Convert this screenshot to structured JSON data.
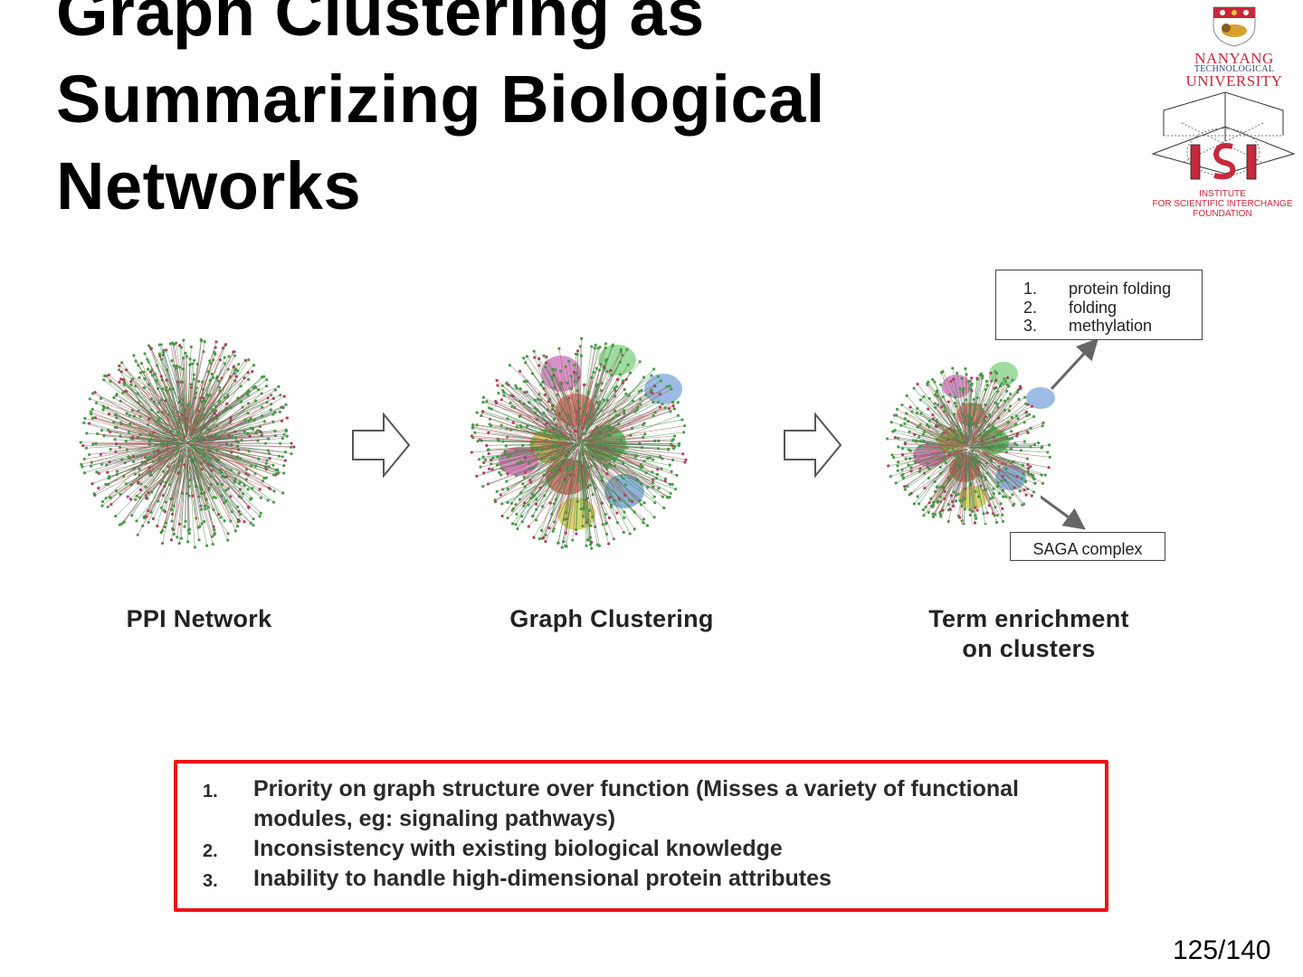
{
  "title": {
    "lines": [
      "Graph Clustering as",
      "Summarizing Biological",
      "Networks"
    ]
  },
  "logos": {
    "ntu": {
      "line1": "NANYANG",
      "line2": "TECHNOLOGICAL",
      "line3": "UNIVERSITY"
    },
    "isi": {
      "line1": "INSTITUTE",
      "line2": "FOR SCIENTIFIC INTERCHANGE",
      "line3": "FOUNDATION"
    }
  },
  "figure": {
    "stages": [
      {
        "label": "PPI Network"
      },
      {
        "label": "Graph Clustering"
      },
      {
        "label_line1": "Term enrichment",
        "label_line2": "on clusters"
      }
    ],
    "terms_box": [
      {
        "num": "1.",
        "text": "protein folding"
      },
      {
        "num": "2.",
        "text": "folding"
      },
      {
        "num": "3.",
        "text": "methylation"
      }
    ],
    "saga_box": "SAGA complex",
    "cluster_colors": [
      "#c86fb8",
      "#7fd07f",
      "#7ba6dc",
      "#d86a5a",
      "#b8b832",
      "#39b539",
      "#c860b0",
      "#c85a4a",
      "#6a9ad0",
      "#c8c840"
    ],
    "edge_colors": [
      "#3a8a3a",
      "#b05050",
      "#6a6a6a"
    ]
  },
  "problems": [
    {
      "num": "1.",
      "text": "Priority on graph structure over function (Misses a variety of functional modules, eg: signaling pathways)"
    },
    {
      "num": "2.",
      "text": "Inconsistency with existing biological knowledge"
    },
    {
      "num": "3.",
      "text": "Inability to handle high-dimensional protein attributes"
    }
  ],
  "highlight_color": "#ee1111",
  "page": "125/140"
}
